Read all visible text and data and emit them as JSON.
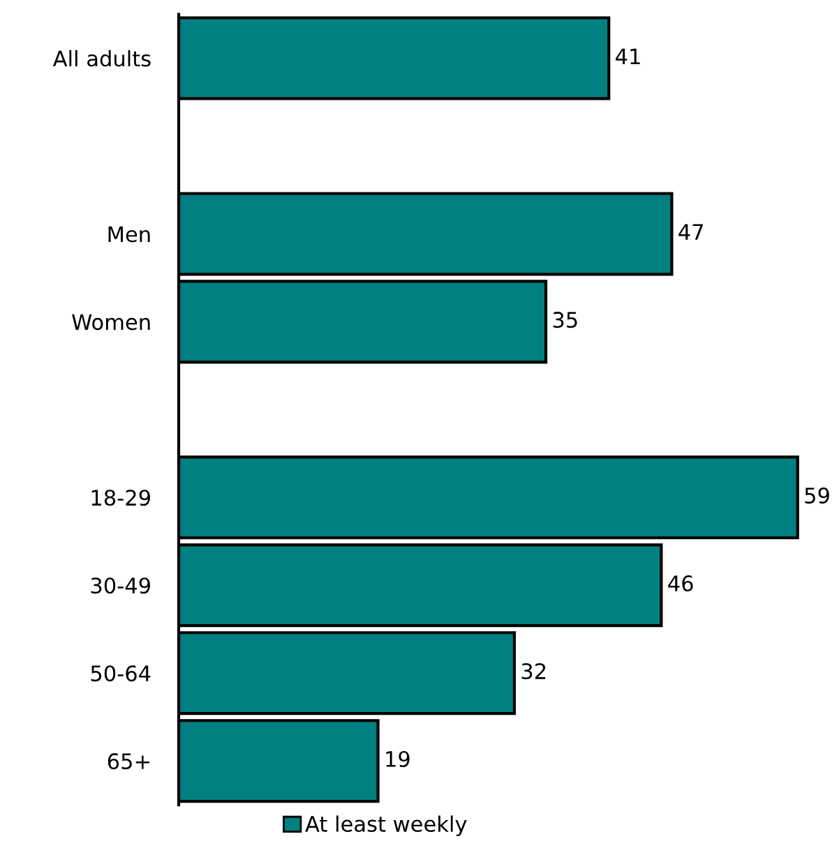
{
  "chart_data": {
    "type": "bar",
    "orientation": "horizontal",
    "categories": [
      "All adults",
      null,
      "Men",
      "Women",
      null,
      "18-29",
      "30-49",
      "50-64",
      "65+"
    ],
    "series": [
      {
        "name": "At least weekly",
        "color": "#008080",
        "values": [
          41,
          null,
          47,
          35,
          null,
          59,
          46,
          32,
          19
        ]
      }
    ],
    "tick_labels": "y",
    "data_labels": true,
    "legend": "bottom",
    "grid": false
  }
}
